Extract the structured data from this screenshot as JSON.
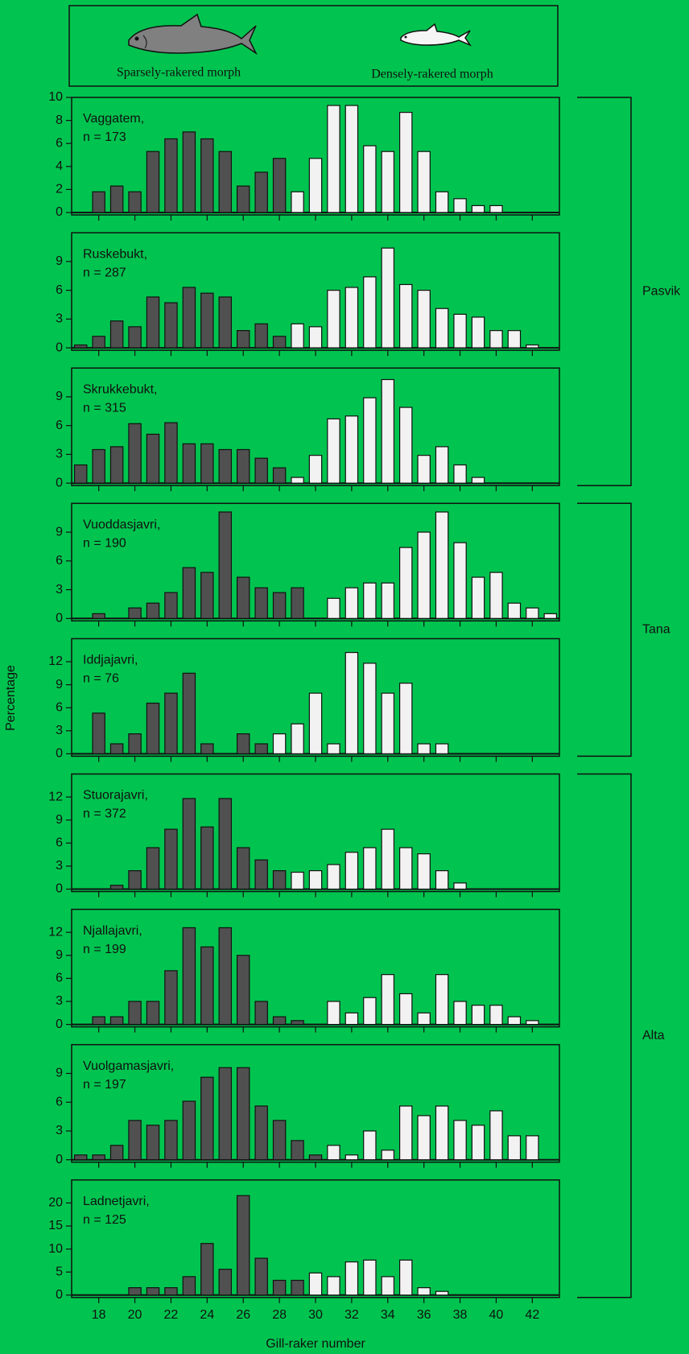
{
  "legend": [
    "Sparsely-rakered morph",
    "Densely-rakered morph"
  ],
  "x_axis": {
    "label": "Gill-raker number",
    "xlim": [
      16.5,
      43.5
    ],
    "xticks": [
      18,
      20,
      22,
      24,
      26,
      28,
      30,
      32,
      34,
      36,
      38,
      40,
      42
    ]
  },
  "y_axis_label": "Percentage",
  "groups": [
    "Pasvik",
    "Tana",
    "Alta"
  ],
  "chart_data": [
    {
      "type": "bar",
      "title": "Vaggatem,",
      "subtitle": "n = 173",
      "ylim": [
        0,
        10
      ],
      "yticks": [
        0,
        2,
        4,
        6,
        8,
        10
      ],
      "x": [
        17,
        18,
        19,
        20,
        21,
        22,
        23,
        24,
        25,
        26,
        27,
        28,
        29,
        30,
        31,
        32,
        33,
        34,
        35,
        36,
        37,
        38,
        39,
        40,
        41,
        42,
        43
      ],
      "series": [
        {
          "color": "#505050",
          "values": [
            null,
            1.8,
            2.3,
            1.8,
            5.3,
            6.4,
            7,
            6.4,
            5.3,
            2.3,
            3.5,
            4.7,
            null,
            null,
            null,
            null,
            null,
            null,
            null,
            null,
            null,
            null,
            null,
            null,
            null,
            null,
            null
          ]
        },
        {
          "color": "#f2f2f2",
          "values": [
            null,
            null,
            null,
            null,
            null,
            null,
            null,
            null,
            null,
            null,
            null,
            null,
            1.8,
            4.7,
            9.3,
            9.3,
            5.8,
            5.3,
            8.7,
            5.3,
            1.8,
            1.2,
            0.6,
            0.6,
            null,
            null,
            null
          ]
        }
      ]
    },
    {
      "type": "bar",
      "title": "Ruskebukt,",
      "subtitle": "n = 287",
      "ylim": [
        0,
        12
      ],
      "yticks": [
        0,
        3,
        6,
        9
      ],
      "x": [
        17,
        18,
        19,
        20,
        21,
        22,
        23,
        24,
        25,
        26,
        27,
        28,
        29,
        30,
        31,
        32,
        33,
        34,
        35,
        36,
        37,
        38,
        39,
        40,
        41,
        42,
        43
      ],
      "series": [
        {
          "color": "#505050",
          "values": [
            0.3,
            1.2,
            2.8,
            2.2,
            5.3,
            4.7,
            6.3,
            5.7,
            5.3,
            1.8,
            2.5,
            1.2,
            null,
            null,
            null,
            null,
            null,
            null,
            null,
            null,
            null,
            null,
            null,
            null,
            null,
            null,
            null
          ]
        },
        {
          "color": "#f2f2f2",
          "values": [
            null,
            null,
            null,
            null,
            null,
            null,
            null,
            null,
            null,
            null,
            null,
            null,
            2.5,
            2.2,
            6,
            6.3,
            7.4,
            10.4,
            6.6,
            6,
            4.1,
            3.5,
            3.2,
            1.8,
            1.8,
            0.3,
            null
          ]
        }
      ]
    },
    {
      "type": "bar",
      "title": "Skrukkebukt,",
      "subtitle": "n = 315",
      "ylim": [
        0,
        12
      ],
      "yticks": [
        0,
        3,
        6,
        9
      ],
      "x": [
        17,
        18,
        19,
        20,
        21,
        22,
        23,
        24,
        25,
        26,
        27,
        28,
        29,
        30,
        31,
        32,
        33,
        34,
        35,
        36,
        37,
        38,
        39,
        40,
        41,
        42,
        43
      ],
      "series": [
        {
          "color": "#505050",
          "values": [
            1.9,
            3.5,
            3.8,
            6.2,
            5.1,
            6.3,
            4.1,
            4.1,
            3.5,
            3.5,
            2.6,
            1.6,
            null,
            null,
            null,
            null,
            null,
            null,
            null,
            null,
            null,
            null,
            null,
            null,
            null,
            null,
            null
          ]
        },
        {
          "color": "#f2f2f2",
          "values": [
            null,
            null,
            null,
            null,
            null,
            null,
            null,
            null,
            null,
            null,
            null,
            null,
            0.6,
            2.9,
            6.7,
            7,
            8.9,
            10.8,
            7.9,
            2.9,
            3.8,
            1.9,
            0.6,
            null,
            null,
            null,
            null
          ]
        }
      ]
    },
    {
      "type": "bar",
      "title": "Vuoddasjavri,",
      "subtitle": "n = 190",
      "ylim": [
        0,
        12
      ],
      "yticks": [
        0,
        3,
        6,
        9
      ],
      "x": [
        17,
        18,
        19,
        20,
        21,
        22,
        23,
        24,
        25,
        26,
        27,
        28,
        29,
        30,
        31,
        32,
        33,
        34,
        35,
        36,
        37,
        38,
        39,
        40,
        41,
        42,
        43
      ],
      "series": [
        {
          "color": "#505050",
          "values": [
            null,
            0.5,
            null,
            1.1,
            1.6,
            2.7,
            5.3,
            4.8,
            11.1,
            4.3,
            3.2,
            2.7,
            3.2,
            null,
            null,
            null,
            null,
            null,
            null,
            null,
            null,
            null,
            null,
            null,
            null,
            null,
            null
          ]
        },
        {
          "color": "#f2f2f2",
          "values": [
            null,
            null,
            null,
            null,
            null,
            null,
            null,
            null,
            null,
            null,
            null,
            null,
            null,
            null,
            2.1,
            3.2,
            3.7,
            3.7,
            7.4,
            9,
            11.1,
            7.9,
            4.3,
            4.8,
            1.6,
            1.1,
            0.5
          ]
        }
      ]
    },
    {
      "type": "bar",
      "title": "Iddjajavri,",
      "subtitle": "n = 76",
      "ylim": [
        0,
        15
      ],
      "yticks": [
        0,
        3,
        6,
        9,
        12
      ],
      "x": [
        17,
        18,
        19,
        20,
        21,
        22,
        23,
        24,
        25,
        26,
        27,
        28,
        29,
        30,
        31,
        32,
        33,
        34,
        35,
        36,
        37,
        38,
        39,
        40,
        41,
        42,
        43
      ],
      "series": [
        {
          "color": "#505050",
          "values": [
            null,
            5.3,
            1.3,
            2.6,
            6.6,
            7.9,
            10.5,
            1.3,
            null,
            2.6,
            1.3,
            null,
            null,
            null,
            null,
            null,
            null,
            null,
            null,
            null,
            null,
            null,
            null,
            null,
            null,
            null,
            null
          ]
        },
        {
          "color": "#f2f2f2",
          "values": [
            null,
            null,
            null,
            null,
            null,
            null,
            null,
            null,
            null,
            null,
            null,
            2.6,
            3.9,
            7.9,
            1.3,
            13.2,
            11.8,
            7.9,
            9.2,
            1.3,
            1.3,
            null,
            null,
            null,
            null,
            null,
            null
          ]
        }
      ]
    },
    {
      "type": "bar",
      "title": "Stuorajavri,",
      "subtitle": "n = 372",
      "ylim": [
        0,
        15
      ],
      "yticks": [
        0,
        3,
        6,
        9,
        12
      ],
      "x": [
        17,
        18,
        19,
        20,
        21,
        22,
        23,
        24,
        25,
        26,
        27,
        28,
        29,
        30,
        31,
        32,
        33,
        34,
        35,
        36,
        37,
        38,
        39,
        40,
        41,
        42,
        43
      ],
      "series": [
        {
          "color": "#505050",
          "values": [
            null,
            null,
            0.5,
            2.4,
            5.4,
            7.8,
            11.8,
            8.1,
            11.8,
            5.4,
            3.8,
            2.4,
            null,
            null,
            null,
            null,
            null,
            null,
            null,
            null,
            null,
            null,
            null,
            null,
            null,
            null,
            null
          ]
        },
        {
          "color": "#f2f2f2",
          "values": [
            null,
            null,
            null,
            null,
            null,
            null,
            null,
            null,
            null,
            null,
            null,
            null,
            2.2,
            2.4,
            3.2,
            4.8,
            5.4,
            7.8,
            5.4,
            4.6,
            2.4,
            0.8,
            null,
            null,
            null,
            null,
            null
          ]
        }
      ]
    },
    {
      "type": "bar",
      "title": "Njallajavri,",
      "subtitle": "n = 199",
      "ylim": [
        0,
        15
      ],
      "yticks": [
        0,
        3,
        6,
        9,
        12
      ],
      "x": [
        17,
        18,
        19,
        20,
        21,
        22,
        23,
        24,
        25,
        26,
        27,
        28,
        29,
        30,
        31,
        32,
        33,
        34,
        35,
        36,
        37,
        38,
        39,
        40,
        41,
        42,
        43
      ],
      "series": [
        {
          "color": "#505050",
          "values": [
            null,
            1,
            1,
            3,
            3,
            7,
            12.6,
            10.1,
            12.6,
            9,
            3,
            1,
            0.5,
            null,
            null,
            null,
            null,
            null,
            null,
            null,
            null,
            null,
            null,
            null,
            null,
            null,
            null
          ]
        },
        {
          "color": "#f2f2f2",
          "values": [
            null,
            null,
            null,
            null,
            null,
            null,
            null,
            null,
            null,
            null,
            null,
            null,
            null,
            null,
            3,
            1.5,
            3.5,
            6.5,
            4,
            1.5,
            6.5,
            3,
            2.5,
            2.5,
            1,
            0.5,
            null
          ]
        }
      ]
    },
    {
      "type": "bar",
      "title": "Vuolgamasjavri,",
      "subtitle": "n = 197",
      "ylim": [
        0,
        12
      ],
      "yticks": [
        0,
        3,
        6,
        9
      ],
      "x": [
        17,
        18,
        19,
        20,
        21,
        22,
        23,
        24,
        25,
        26,
        27,
        28,
        29,
        30,
        31,
        32,
        33,
        34,
        35,
        36,
        37,
        38,
        39,
        40,
        41,
        42,
        43
      ],
      "series": [
        {
          "color": "#505050",
          "values": [
            0.5,
            0.5,
            1.5,
            4.1,
            3.6,
            4.1,
            6.1,
            8.6,
            9.6,
            9.6,
            5.6,
            4.1,
            2,
            0.5,
            null,
            null,
            null,
            null,
            null,
            null,
            null,
            null,
            null,
            null,
            null,
            null,
            null
          ]
        },
        {
          "color": "#f2f2f2",
          "values": [
            null,
            null,
            null,
            null,
            null,
            null,
            null,
            null,
            null,
            null,
            null,
            null,
            null,
            null,
            1.5,
            0.5,
            3,
            1,
            5.6,
            4.6,
            5.6,
            4.1,
            3.6,
            5.1,
            2.5,
            2.5,
            null
          ]
        }
      ]
    },
    {
      "type": "bar",
      "title": "Ladnetjavri,",
      "subtitle": "n = 125",
      "ylim": [
        0,
        25
      ],
      "yticks": [
        0,
        5,
        10,
        15,
        20
      ],
      "x": [
        17,
        18,
        19,
        20,
        21,
        22,
        23,
        24,
        25,
        26,
        27,
        28,
        29,
        30,
        31,
        32,
        33,
        34,
        35,
        36,
        37,
        38,
        39,
        40,
        41,
        42,
        43
      ],
      "series": [
        {
          "color": "#505050",
          "values": [
            null,
            null,
            null,
            1.6,
            1.6,
            1.6,
            4,
            11.2,
            5.6,
            21.6,
            8,
            3.2,
            3.2,
            null,
            null,
            null,
            null,
            null,
            null,
            null,
            null,
            null,
            null,
            null,
            null,
            null,
            null
          ]
        },
        {
          "color": "#f2f2f2",
          "values": [
            null,
            null,
            null,
            null,
            null,
            null,
            null,
            null,
            null,
            null,
            null,
            null,
            null,
            4.8,
            4,
            7.2,
            7.6,
            4,
            7.6,
            1.6,
            0.8,
            null,
            null,
            null,
            null,
            null,
            null
          ]
        }
      ]
    }
  ]
}
